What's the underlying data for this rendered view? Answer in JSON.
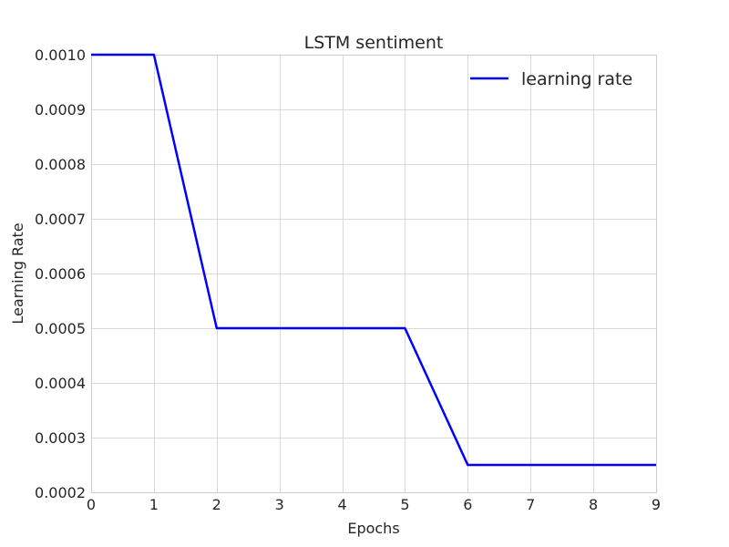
{
  "chart_data": {
    "type": "line",
    "title": "LSTM sentiment",
    "xlabel": "Epochs",
    "ylabel": "Learning Rate",
    "xlim": [
      0,
      9
    ],
    "ylim": [
      0.0002,
      0.001
    ],
    "xticks": [
      "0",
      "1",
      "2",
      "3",
      "4",
      "5",
      "6",
      "7",
      "8",
      "9"
    ],
    "yticks": [
      "0.0002",
      "0.0003",
      "0.0004",
      "0.0005",
      "0.0006",
      "0.0007",
      "0.0008",
      "0.0009",
      "0.0010"
    ],
    "grid": true,
    "legend_position": "top-right",
    "series": [
      {
        "name": "learning rate",
        "color": "#0000ff",
        "x": [
          0,
          1,
          2,
          3,
          4,
          5,
          6,
          7,
          8,
          9
        ],
        "y": [
          0.001,
          0.001,
          0.0005,
          0.0005,
          0.0005,
          0.0005,
          0.00025,
          0.00025,
          0.00025,
          0.00025
        ]
      }
    ]
  }
}
